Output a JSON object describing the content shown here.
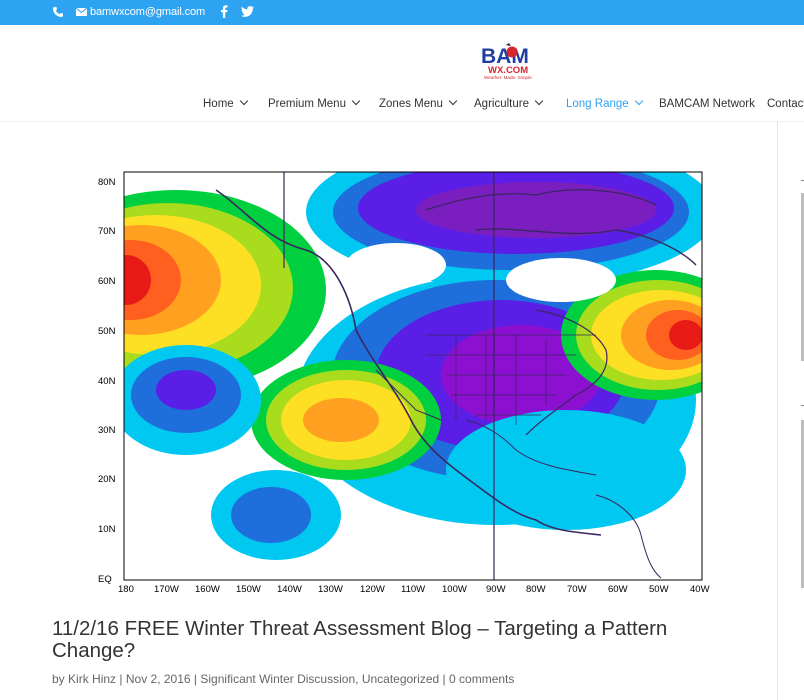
{
  "topbar": {
    "email": "bamwxcom@gmail.com",
    "icons": [
      "phone-icon",
      "mail-icon",
      "facebook-icon",
      "twitter-icon"
    ],
    "background": "#2ea3f2"
  },
  "logo": {
    "text_top": "BAM",
    "text_mid": "WX.COM",
    "tagline": "Weather. Made. Simple."
  },
  "nav": {
    "items": [
      {
        "label": "Home",
        "dropdown": true
      },
      {
        "label": "Premium Menu",
        "dropdown": true
      },
      {
        "label": "Zones Menu",
        "dropdown": true
      },
      {
        "label": "Agriculture",
        "dropdown": true
      },
      {
        "label": "Long Range",
        "dropdown": true,
        "active": true
      },
      {
        "label": "BAMCAM Network",
        "dropdown": false
      },
      {
        "label": "Contact",
        "dropdown": false
      }
    ],
    "active_color": "#2ea3f2"
  },
  "map": {
    "lat_labels": [
      "80N",
      "70N",
      "60N",
      "50N",
      "40N",
      "30N",
      "20N",
      "10N",
      "EQ"
    ],
    "lon_labels": [
      "180",
      "170W",
      "160W",
      "150W",
      "140W",
      "130W",
      "120W",
      "110W",
      "100W",
      "90W",
      "80W",
      "70W",
      "60W",
      "50W",
      "40W"
    ]
  },
  "post": {
    "title": "11/2/16 FREE Winter Threat Assessment Blog – Targeting a Pattern Change?",
    "by": "by",
    "author": "Kirk Hinz",
    "sep": "|",
    "date": "Nov 2, 2016",
    "category1": "Significant Winter Discussion",
    "comma": ",",
    "category2": "Uncategorized",
    "comments": "0 comments"
  }
}
